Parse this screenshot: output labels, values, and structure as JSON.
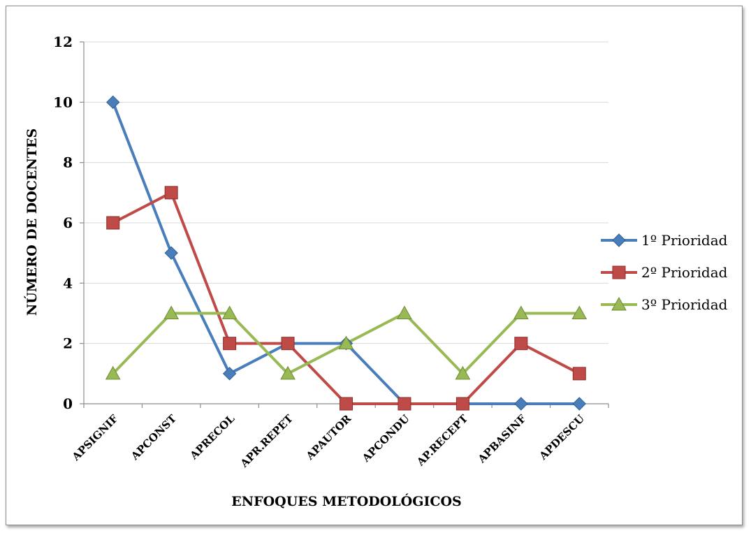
{
  "chart_data": {
    "type": "line",
    "title": "",
    "xlabel": "ENFOQUES METODOLÓGICOS",
    "ylabel": "NÚMERO DE DOCENTES",
    "categories": [
      "APSIGNIF",
      "APCONST",
      "APRECOL",
      "APR.REPET",
      "APAUTOR",
      "APCONDU",
      "AP.RECEPT",
      "APBASINF",
      "APDESCU"
    ],
    "ylim": [
      0,
      12
    ],
    "yticks": [
      "0",
      "2",
      "4",
      "6",
      "8",
      "10",
      "12"
    ],
    "grid": true,
    "legend_position": "right",
    "series": [
      {
        "name": "1º Prioridad",
        "values": [
          10,
          5,
          1,
          2,
          2,
          0,
          0,
          0,
          0
        ],
        "color": "#4a7ebb",
        "marker": "diamond"
      },
      {
        "name": "2º Prioridad",
        "values": [
          6,
          7,
          2,
          2,
          0,
          0,
          0,
          2,
          1
        ],
        "color": "#be4b48",
        "marker": "square"
      },
      {
        "name": "3º Prioridad",
        "values": [
          1,
          3,
          3,
          1,
          2,
          3,
          1,
          3,
          3
        ],
        "color": "#98b954",
        "marker": "triangle"
      }
    ]
  }
}
